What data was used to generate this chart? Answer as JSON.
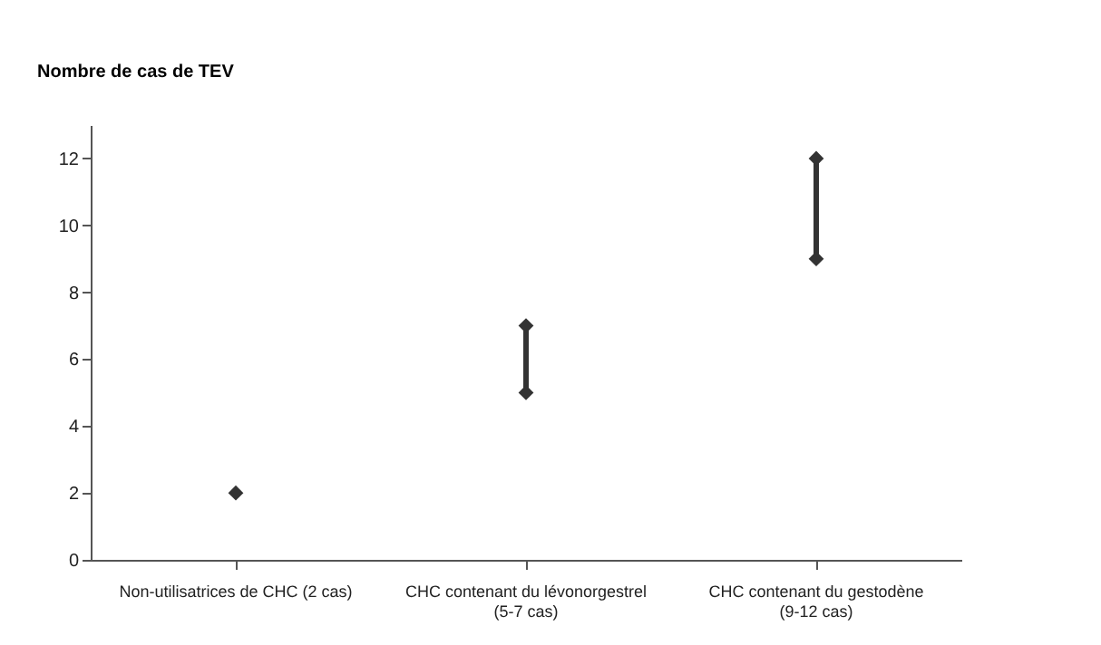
{
  "chart_data": {
    "type": "scatter",
    "ylabel": "Nombre de cas de TEV",
    "categories": [
      "Non-utilisatrices de CHC (2 cas)",
      "CHC contenant du lévonorgestrel (5-7 cas)",
      "CHC contenant du gestodène (9-12 cas)"
    ],
    "series": [
      {
        "type": "bar",
        "color": "#333333",
        "base": [
          null,
          5,
          9
        ],
        "values": [
          null,
          2,
          3
        ]
      },
      {
        "color": "#333333",
        "values": [
          2,
          5,
          9
        ]
      },
      {
        "color": "#333333",
        "values": [
          null,
          7,
          12
        ]
      }
    ],
    "ylim": [
      0,
      13
    ],
    "yticks": [
      0,
      2,
      4,
      6,
      8,
      10,
      12
    ],
    "marker": "diamond",
    "grid": false
  }
}
